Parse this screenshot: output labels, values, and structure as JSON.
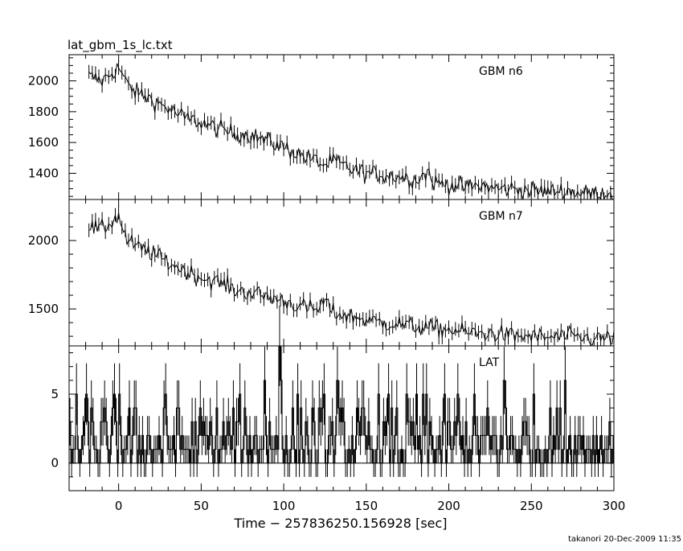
{
  "file_title": "lat_gbm_1s_lc.txt",
  "footer": "takanori 20-Dec-2009 11:35",
  "chart_data": [
    {
      "type": "line",
      "panel_label": "GBM n6",
      "x_range": [
        -30,
        300
      ],
      "ylim": [
        1230,
        2170
      ],
      "y_ticks": [
        1400,
        1600,
        1800,
        2000
      ],
      "y_minor_step": 50,
      "noise": 40,
      "err": 45,
      "x": [
        -18,
        -10,
        0,
        5,
        10,
        20,
        30,
        40,
        50,
        60,
        70,
        80,
        90,
        100,
        110,
        120,
        125,
        130,
        140,
        150,
        160,
        170,
        180,
        188,
        190,
        200,
        210,
        220,
        230,
        240,
        250,
        260,
        270,
        280,
        290,
        300
      ],
      "y": [
        2030,
        2000,
        2090,
        1980,
        1930,
        1880,
        1820,
        1760,
        1730,
        1690,
        1660,
        1650,
        1610,
        1570,
        1520,
        1480,
        1450,
        1480,
        1430,
        1400,
        1390,
        1380,
        1360,
        1410,
        1340,
        1330,
        1310,
        1320,
        1300,
        1300,
        1290,
        1280,
        1290,
        1270,
        1270,
        1270
      ]
    },
    {
      "type": "line",
      "panel_label": "GBM n7",
      "x_range": [
        -30,
        300
      ],
      "ylim": [
        1230,
        2300
      ],
      "y_ticks": [
        1500,
        2000
      ],
      "y_minor_step": 100,
      "noise": 45,
      "err": 50,
      "x": [
        -18,
        -10,
        0,
        5,
        10,
        20,
        30,
        40,
        50,
        60,
        70,
        80,
        90,
        100,
        110,
        120,
        125,
        130,
        140,
        150,
        160,
        170,
        180,
        190,
        200,
        210,
        220,
        230,
        240,
        250,
        260,
        270,
        280,
        290,
        300
      ],
      "y": [
        2100,
        2080,
        2180,
        2000,
        1960,
        1910,
        1840,
        1780,
        1730,
        1700,
        1640,
        1620,
        1590,
        1560,
        1520,
        1490,
        1560,
        1470,
        1450,
        1420,
        1400,
        1390,
        1370,
        1360,
        1350,
        1330,
        1320,
        1320,
        1300,
        1300,
        1290,
        1300,
        1290,
        1280,
        1290
      ]
    },
    {
      "type": "line",
      "panel_label": "LAT",
      "x_range": [
        -30,
        300
      ],
      "ylim": [
        -2,
        8.5
      ],
      "y_ticks": [
        0,
        5
      ],
      "y_minor_step": 1,
      "x": [
        -30,
        300
      ],
      "y": [
        1,
        1
      ],
      "peaks": [
        {
          "x": 97,
          "y": 8.5
        },
        {
          "x": 98,
          "y": 6
        },
        {
          "x": 88,
          "y": 6
        },
        {
          "x": 132,
          "y": 6
        },
        {
          "x": 233,
          "y": 6
        },
        {
          "x": 270,
          "y": 6
        },
        {
          "x": 0,
          "y": 5
        },
        {
          "x": 205,
          "y": 5
        }
      ]
    }
  ],
  "shared_x_axis": {
    "ticks": [
      0,
      50,
      100,
      150,
      200,
      250,
      300
    ],
    "minor_step": 10,
    "label": "Time − 257836250.156928 [sec]"
  }
}
